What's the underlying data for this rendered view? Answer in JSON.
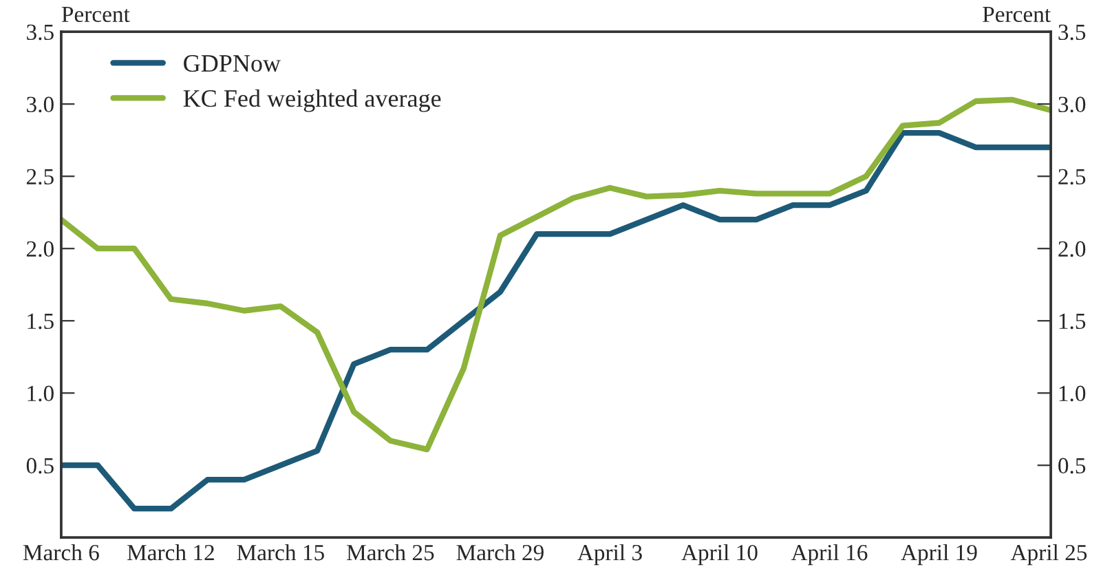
{
  "chart_data": {
    "type": "line",
    "categories": [
      "March 6",
      null,
      null,
      "March 12",
      null,
      null,
      "March 15",
      null,
      null,
      "March 25",
      null,
      null,
      "March 29",
      null,
      null,
      "April 3",
      null,
      null,
      "April 10",
      null,
      null,
      "April 16",
      null,
      null,
      "April 19",
      null,
      null,
      "April 25"
    ],
    "series": [
      {
        "name": "GDPNow",
        "color": "#1d5a78",
        "values": [
          0.5,
          0.5,
          0.2,
          0.2,
          0.4,
          0.4,
          0.5,
          0.6,
          1.2,
          1.3,
          1.3,
          1.5,
          1.7,
          2.1,
          2.1,
          2.1,
          2.2,
          2.3,
          2.2,
          2.2,
          2.3,
          2.3,
          2.4,
          2.8,
          2.8,
          2.7,
          2.7,
          2.7
        ]
      },
      {
        "name": "KC Fed weighted average",
        "color": "#8db33a",
        "values": [
          2.2,
          2.0,
          2.0,
          1.65,
          1.62,
          1.57,
          1.6,
          1.42,
          0.87,
          0.67,
          0.61,
          1.17,
          2.09,
          2.22,
          2.35,
          2.42,
          2.36,
          2.37,
          2.4,
          2.38,
          2.38,
          2.38,
          2.5,
          2.85,
          2.87,
          3.02,
          3.03,
          2.96
        ]
      }
    ],
    "ylabel": "Percent",
    "y2label": "Percent",
    "ylim": [
      0,
      3.5
    ],
    "yticks": [
      {
        "value": 0.5,
        "label": "0.5"
      },
      {
        "value": 1.0,
        "label": "1.0"
      },
      {
        "value": 1.5,
        "label": "1.5"
      },
      {
        "value": 2.0,
        "label": "2.0"
      },
      {
        "value": 2.5,
        "label": "2.5"
      },
      {
        "value": 3.0,
        "label": "3.0"
      },
      {
        "value": 3.5,
        "label": "3.5"
      }
    ],
    "y2lim": [
      0,
      3.5
    ],
    "y2ticks": [
      {
        "value": 0.5,
        "label": "0.5"
      },
      {
        "value": 1.0,
        "label": "1.0"
      },
      {
        "value": 1.5,
        "label": "1.5"
      },
      {
        "value": 2.0,
        "label": "2.0"
      },
      {
        "value": 2.5,
        "label": "2.5"
      },
      {
        "value": 3.0,
        "label": "3.0"
      },
      {
        "value": 3.5,
        "label": "3.5"
      }
    ],
    "legend": "top left",
    "grid": false,
    "marker": "none",
    "line_style": "solid"
  }
}
